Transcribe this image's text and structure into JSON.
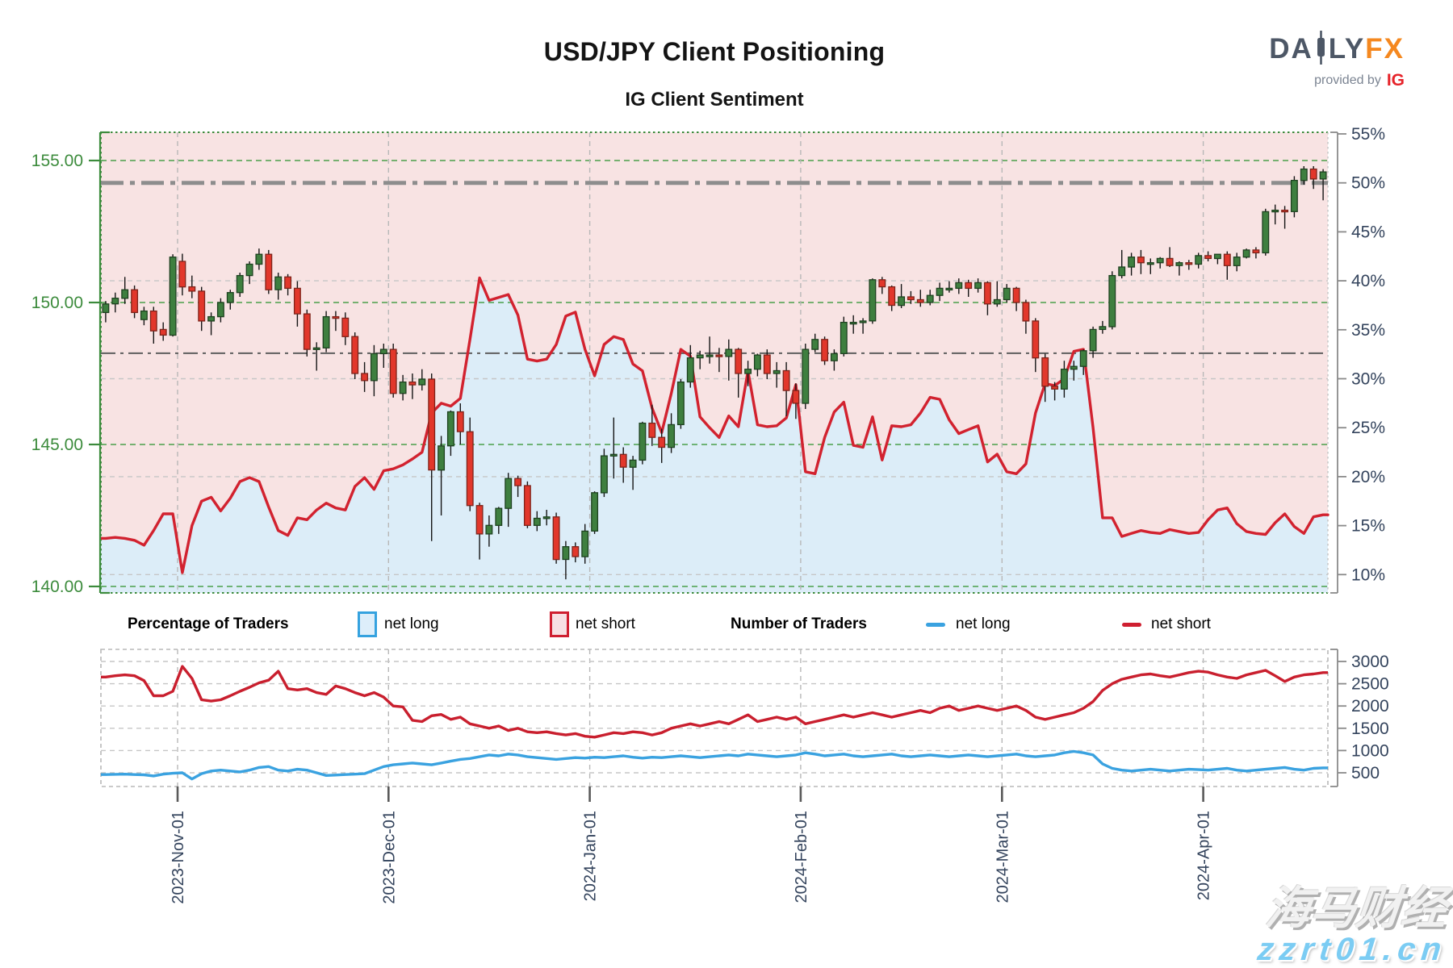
{
  "header": {
    "title": "USD/JPY Client Positioning",
    "subtitle": "IG Client Sentiment"
  },
  "logo": {
    "da": "DA",
    "ly": "LY",
    "fx": "FX",
    "provided": "provided by",
    "ig": "IG"
  },
  "legend": {
    "pct_title": "Percentage of Traders",
    "num_title": "Number of Traders",
    "net_long": "net long",
    "net_short": "net short"
  },
  "watermark": {
    "line1": "海马财经",
    "line2": "zzrt01.cn"
  },
  "colors": {
    "pink_area": "#f8e3e3",
    "blue_area": "#dcedf8",
    "sentiment_line": "#d2222f",
    "candle_up": "#3e7f3f",
    "candle_up_border": "#1e4220",
    "candle_down": "#e2372b",
    "candle_down_border": "#7e241b",
    "wick": "#151515",
    "axis_green": "#3c8b3c",
    "grid_green": "#4aa04a",
    "navy_text": "#33435c",
    "grid_gray": "#c6c6c6",
    "vgrid_gray": "#b8b8b8",
    "ref_thick": "#8d8d8d",
    "ref_thin": "#5f5f5f",
    "axis_gray": "#8a8a8a",
    "traders_long": "#3aa2e0",
    "traders_short": "#c91f2e",
    "tick_dark": "#5a5a5a"
  },
  "chart_data": [
    {
      "type": "candlestick",
      "title": "IG Client Sentiment",
      "price_axis": {
        "ticks": [
          155,
          150,
          145,
          140
        ],
        "labels": [
          "155.00",
          "150.00",
          "145.00",
          "140.00"
        ]
      },
      "pct_axis": {
        "ticks": [
          55,
          50,
          45,
          40,
          35,
          30,
          25,
          20,
          15,
          10
        ],
        "labels": [
          "55%",
          "50%",
          "45%",
          "40%",
          "35%",
          "30%",
          "25%",
          "20%",
          "15%",
          "10%"
        ]
      },
      "pct_gridlines": [
        40,
        30,
        20,
        10
      ],
      "ref_lines_pct": [
        {
          "value": 50.0,
          "style": "thick"
        },
        {
          "value": 32.6,
          "style": "thin"
        }
      ],
      "month_ticks": {
        "pos": [
          7.5,
          29.5,
          50.5,
          72.5,
          93.5,
          114.5
        ],
        "labels": [
          "2023-Nov-01",
          "2023-Dec-01",
          "2024-Jan-01",
          "2024-Feb-01",
          "2024-Mar-01",
          "2024-Apr-01"
        ]
      },
      "net_long_pct": [
        13.7,
        13.8,
        13.7,
        13.5,
        13.0,
        14.5,
        16.2,
        16.2,
        10.2,
        15.0,
        17.5,
        17.9,
        16.5,
        17.8,
        19.5,
        19.9,
        19.5,
        16.9,
        14.5,
        14.0,
        15.8,
        15.6,
        16.6,
        17.3,
        16.8,
        16.6,
        19.0,
        19.9,
        18.7,
        20.6,
        20.8,
        21.2,
        21.8,
        22.5,
        26.5,
        27.5,
        27.2,
        28.0,
        34.0,
        40.3,
        38.0,
        38.3,
        38.6,
        36.5,
        32.0,
        31.8,
        32.0,
        33.5,
        36.4,
        36.8,
        33.0,
        30.3,
        33.5,
        34.3,
        34.0,
        31.5,
        30.8,
        27.0,
        24.5,
        28.5,
        33.0,
        32.3,
        26.1,
        25.0,
        24.0,
        26.2,
        25.1,
        30.8,
        25.3,
        25.1,
        25.2,
        26.0,
        29.4,
        20.5,
        20.3,
        24.0,
        26.6,
        27.6,
        23.2,
        23.0,
        26.1,
        21.7,
        25.2,
        25.1,
        25.3,
        26.5,
        28.1,
        27.9,
        25.8,
        24.4,
        24.8,
        25.2,
        21.5,
        22.3,
        20.5,
        20.3,
        21.3,
        26.5,
        29.5,
        29.3,
        30.0,
        32.8,
        33.0,
        25.0,
        15.8,
        15.8,
        13.9,
        14.2,
        14.5,
        14.3,
        14.2,
        14.6,
        14.4,
        14.2,
        14.3,
        15.6,
        16.6,
        16.8,
        15.2,
        14.4,
        14.2,
        14.1,
        15.3,
        16.2,
        14.9,
        14.2,
        15.9,
        16.1
      ],
      "candles_ohlc": [
        [
          149.65,
          150.05,
          149.3,
          149.95
        ],
        [
          149.95,
          150.35,
          149.65,
          150.15
        ],
        [
          150.15,
          150.9,
          149.95,
          150.45
        ],
        [
          150.45,
          150.6,
          149.45,
          149.65
        ],
        [
          149.4,
          149.85,
          149.2,
          149.7
        ],
        [
          149.7,
          149.85,
          148.55,
          149.0
        ],
        [
          149.05,
          149.3,
          148.65,
          148.85
        ],
        [
          148.85,
          151.7,
          148.8,
          151.6
        ],
        [
          151.45,
          151.72,
          150.25,
          150.55
        ],
        [
          150.55,
          150.95,
          150.15,
          150.4
        ],
        [
          150.4,
          150.55,
          149.0,
          149.35
        ],
        [
          149.35,
          149.65,
          148.85,
          149.5
        ],
        [
          149.5,
          150.15,
          149.3,
          150.0
        ],
        [
          150.0,
          150.45,
          149.75,
          150.35
        ],
        [
          150.35,
          151.05,
          150.2,
          150.95
        ],
        [
          150.95,
          151.45,
          150.65,
          151.35
        ],
        [
          151.35,
          151.9,
          151.15,
          151.7
        ],
        [
          151.7,
          151.85,
          150.3,
          150.45
        ],
        [
          150.45,
          151.05,
          150.1,
          150.9
        ],
        [
          150.9,
          151.0,
          150.25,
          150.5
        ],
        [
          150.5,
          150.75,
          149.15,
          149.6
        ],
        [
          149.6,
          149.75,
          148.1,
          148.35
        ],
        [
          148.35,
          148.6,
          147.6,
          148.4
        ],
        [
          148.4,
          149.7,
          148.25,
          149.5
        ],
        [
          149.5,
          149.7,
          149.0,
          149.45
        ],
        [
          149.45,
          149.65,
          148.5,
          148.8
        ],
        [
          148.8,
          148.95,
          147.3,
          147.5
        ],
        [
          147.5,
          147.9,
          146.85,
          147.25
        ],
        [
          147.25,
          148.5,
          146.7,
          148.2
        ],
        [
          148.2,
          148.55,
          147.7,
          148.35
        ],
        [
          148.35,
          148.55,
          146.65,
          146.8
        ],
        [
          146.8,
          147.45,
          146.55,
          147.2
        ],
        [
          147.2,
          147.5,
          146.6,
          147.1
        ],
        [
          147.1,
          147.65,
          146.9,
          147.3
        ],
        [
          147.3,
          147.5,
          141.6,
          144.1
        ],
        [
          144.1,
          145.3,
          142.5,
          144.95
        ],
        [
          144.95,
          146.2,
          144.6,
          146.15
        ],
        [
          146.15,
          146.45,
          145.0,
          145.45
        ],
        [
          145.45,
          145.95,
          142.65,
          142.85
        ],
        [
          142.85,
          142.95,
          140.95,
          141.85
        ],
        [
          141.85,
          142.5,
          141.4,
          142.15
        ],
        [
          142.15,
          142.8,
          141.85,
          142.75
        ],
        [
          142.75,
          144.0,
          142.1,
          143.8
        ],
        [
          143.8,
          143.9,
          143.15,
          143.55
        ],
        [
          143.55,
          143.7,
          142.05,
          142.15
        ],
        [
          142.15,
          142.65,
          141.95,
          142.4
        ],
        [
          142.4,
          142.7,
          142.15,
          142.45
        ],
        [
          142.45,
          142.6,
          140.8,
          140.95
        ],
        [
          140.95,
          141.6,
          140.25,
          141.4
        ],
        [
          141.4,
          141.55,
          140.85,
          141.05
        ],
        [
          141.05,
          142.2,
          140.8,
          141.95
        ],
        [
          141.95,
          143.35,
          141.85,
          143.3
        ],
        [
          143.3,
          144.85,
          143.15,
          144.6
        ],
        [
          144.6,
          145.95,
          143.8,
          144.65
        ],
        [
          144.65,
          144.9,
          143.65,
          144.2
        ],
        [
          144.2,
          144.6,
          143.4,
          144.45
        ],
        [
          144.45,
          145.8,
          144.3,
          145.75
        ],
        [
          145.75,
          146.4,
          144.95,
          145.25
        ],
        [
          145.25,
          145.55,
          144.35,
          144.9
        ],
        [
          144.9,
          146.1,
          144.7,
          145.7
        ],
        [
          145.7,
          147.3,
          145.55,
          147.2
        ],
        [
          147.2,
          148.5,
          147.0,
          148.05
        ],
        [
          148.05,
          148.3,
          147.65,
          148.15
        ],
        [
          148.15,
          148.8,
          147.85,
          148.15
        ],
        [
          148.15,
          148.4,
          147.55,
          148.1
        ],
        [
          148.1,
          148.7,
          147.25,
          148.35
        ],
        [
          148.35,
          148.4,
          146.65,
          147.5
        ],
        [
          147.5,
          147.95,
          147.05,
          147.65
        ],
        [
          147.65,
          148.2,
          147.4,
          148.15
        ],
        [
          148.15,
          148.35,
          147.3,
          147.5
        ],
        [
          147.5,
          147.9,
          147.0,
          147.6
        ],
        [
          147.6,
          147.9,
          146.0,
          146.9
        ],
        [
          146.9,
          147.15,
          145.9,
          146.45
        ],
        [
          146.45,
          148.55,
          146.25,
          148.35
        ],
        [
          148.35,
          148.9,
          148.25,
          148.7
        ],
        [
          148.7,
          148.8,
          147.8,
          147.95
        ],
        [
          147.95,
          148.35,
          147.6,
          148.2
        ],
        [
          148.2,
          149.5,
          148.1,
          149.3
        ],
        [
          149.3,
          149.55,
          148.9,
          149.3
        ],
        [
          149.3,
          149.45,
          148.9,
          149.35
        ],
        [
          149.35,
          150.85,
          149.25,
          150.8
        ],
        [
          150.8,
          150.9,
          150.3,
          150.55
        ],
        [
          150.55,
          150.6,
          149.7,
          149.9
        ],
        [
          149.9,
          150.65,
          149.8,
          150.2
        ],
        [
          150.2,
          150.4,
          149.95,
          150.1
        ],
        [
          150.1,
          150.45,
          149.85,
          150.0
        ],
        [
          150.0,
          150.45,
          149.9,
          150.25
        ],
        [
          150.25,
          150.7,
          150.05,
          150.5
        ],
        [
          150.5,
          150.75,
          150.35,
          150.5
        ],
        [
          150.5,
          150.85,
          150.3,
          150.7
        ],
        [
          150.7,
          150.8,
          150.2,
          150.5
        ],
        [
          150.5,
          150.85,
          150.35,
          150.7
        ],
        [
          150.7,
          150.75,
          149.55,
          149.95
        ],
        [
          149.95,
          150.75,
          149.85,
          150.1
        ],
        [
          150.1,
          150.65,
          150.0,
          150.5
        ],
        [
          150.5,
          150.55,
          149.7,
          150.0
        ],
        [
          150.0,
          150.1,
          148.9,
          149.35
        ],
        [
          149.35,
          149.45,
          147.55,
          148.05
        ],
        [
          148.05,
          148.2,
          146.5,
          147.05
        ],
        [
          147.05,
          147.2,
          146.55,
          146.95
        ],
        [
          146.95,
          147.95,
          146.65,
          147.65
        ],
        [
          147.65,
          147.95,
          147.25,
          147.75
        ],
        [
          147.75,
          148.35,
          147.45,
          148.3
        ],
        [
          148.3,
          149.15,
          148.05,
          149.05
        ],
        [
          149.05,
          149.35,
          148.9,
          149.15
        ],
        [
          149.15,
          151.1,
          149.05,
          150.95
        ],
        [
          150.95,
          151.85,
          150.85,
          151.25
        ],
        [
          151.25,
          151.75,
          150.95,
          151.6
        ],
        [
          151.6,
          151.85,
          151.0,
          151.4
        ],
        [
          151.4,
          151.55,
          151.0,
          151.4
        ],
        [
          151.4,
          151.6,
          151.2,
          151.55
        ],
        [
          151.55,
          151.95,
          151.25,
          151.3
        ],
        [
          151.3,
          151.45,
          150.95,
          151.4
        ],
        [
          151.4,
          151.5,
          151.15,
          151.35
        ],
        [
          151.35,
          151.75,
          151.2,
          151.65
        ],
        [
          151.65,
          151.8,
          151.45,
          151.55
        ],
        [
          151.55,
          151.7,
          151.35,
          151.7
        ],
        [
          151.7,
          151.8,
          150.8,
          151.3
        ],
        [
          151.3,
          151.75,
          151.1,
          151.6
        ],
        [
          151.6,
          151.9,
          151.55,
          151.85
        ],
        [
          151.85,
          151.95,
          151.55,
          151.75
        ],
        [
          151.75,
          153.3,
          151.65,
          153.2
        ],
        [
          153.2,
          153.45,
          152.75,
          153.25
        ],
        [
          153.25,
          153.4,
          152.6,
          153.2
        ],
        [
          153.2,
          154.45,
          153.0,
          154.3
        ],
        [
          154.3,
          154.8,
          154.15,
          154.7
        ],
        [
          154.7,
          154.8,
          154.0,
          154.35
        ],
        [
          154.35,
          154.7,
          153.6,
          154.6
        ]
      ]
    },
    {
      "type": "line",
      "title": "Number of Traders",
      "value_axis": {
        "ticks": [
          3000,
          2500,
          2000,
          1500,
          1000,
          500
        ],
        "labels": [
          "3000",
          "2500",
          "2000",
          "1500",
          "1000",
          "500"
        ]
      },
      "net_short_count": [
        2650,
        2680,
        2700,
        2680,
        2570,
        2230,
        2230,
        2330,
        2890,
        2620,
        2140,
        2110,
        2140,
        2230,
        2330,
        2420,
        2520,
        2580,
        2780,
        2390,
        2360,
        2390,
        2300,
        2260,
        2450,
        2390,
        2300,
        2230,
        2300,
        2200,
        2000,
        1980,
        1680,
        1650,
        1780,
        1810,
        1700,
        1750,
        1600,
        1550,
        1500,
        1550,
        1450,
        1500,
        1420,
        1400,
        1420,
        1380,
        1350,
        1380,
        1320,
        1300,
        1350,
        1400,
        1380,
        1420,
        1400,
        1350,
        1400,
        1500,
        1550,
        1600,
        1550,
        1600,
        1650,
        1600,
        1700,
        1800,
        1650,
        1700,
        1750,
        1700,
        1750,
        1600,
        1650,
        1700,
        1750,
        1800,
        1750,
        1800,
        1850,
        1800,
        1750,
        1800,
        1850,
        1900,
        1850,
        1950,
        2000,
        1900,
        1950,
        2000,
        1950,
        1900,
        1950,
        2000,
        1900,
        1750,
        1700,
        1750,
        1800,
        1850,
        1950,
        2100,
        2350,
        2500,
        2600,
        2650,
        2700,
        2720,
        2680,
        2650,
        2700,
        2750,
        2780,
        2760,
        2700,
        2650,
        2620,
        2700,
        2750,
        2800,
        2680,
        2550,
        2650,
        2700,
        2720,
        2750
      ],
      "net_long_count": [
        460,
        465,
        470,
        460,
        455,
        430,
        470,
        490,
        500,
        360,
        480,
        540,
        560,
        540,
        520,
        560,
        620,
        640,
        560,
        540,
        580,
        560,
        500,
        440,
        450,
        460,
        470,
        480,
        560,
        640,
        680,
        700,
        720,
        700,
        680,
        720,
        760,
        800,
        820,
        860,
        900,
        880,
        920,
        900,
        860,
        840,
        820,
        800,
        820,
        840,
        830,
        850,
        840,
        860,
        880,
        850,
        830,
        850,
        840,
        860,
        880,
        860,
        840,
        860,
        880,
        900,
        880,
        920,
        900,
        880,
        860,
        880,
        900,
        950,
        920,
        880,
        900,
        920,
        880,
        860,
        880,
        900,
        920,
        880,
        860,
        880,
        900,
        880,
        860,
        880,
        900,
        880,
        860,
        880,
        900,
        920,
        880,
        860,
        880,
        900,
        950,
        980,
        950,
        900,
        700,
        600,
        560,
        540,
        560,
        580,
        560,
        540,
        560,
        580,
        570,
        560,
        580,
        600,
        560,
        540,
        560,
        580,
        600,
        620,
        580,
        560,
        600,
        610
      ]
    }
  ]
}
